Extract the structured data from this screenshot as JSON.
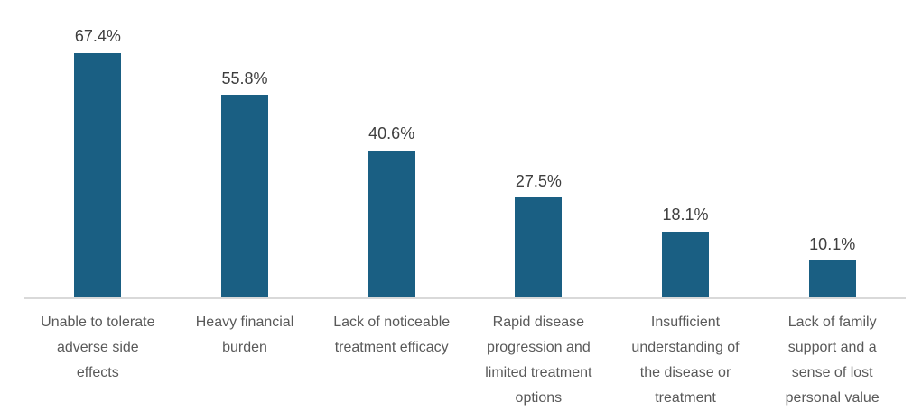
{
  "chart": {
    "bar_color": "#1A5F83",
    "axis_line_color": "#D9D9D9",
    "value_label_color": "#3F3F3F",
    "category_label_color": "#595959",
    "background_color": "#FFFFFF"
  },
  "chart_data": {
    "type": "bar",
    "title": "",
    "xlabel": "",
    "ylabel": "",
    "categories": [
      "Unable to tolerate adverse side effects",
      "Heavy financial burden",
      "Lack of noticeable treatment efficacy",
      "Rapid disease progression and limited treatment options",
      "Insufficient understanding of the disease or treatment",
      "Lack of family support and a sense of lost personal value"
    ],
    "display_categories": [
      "Unable to tolerate\nadverse side\neffects",
      "Heavy financial\nburden",
      "Lack of noticeable\ntreatment efficacy",
      "Rapid disease\nprogression and\nlimited treatment\noptions",
      "Insufficient\nunderstanding of\nthe disease or\ntreatment",
      "Lack of family\nsupport and a\nsense of lost\npersonal value"
    ],
    "values": [
      67.4,
      55.8,
      40.6,
      27.5,
      18.1,
      10.1
    ],
    "value_labels": [
      "67.4%",
      "55.8%",
      "40.6%",
      "27.5%",
      "18.1%",
      "10.1%"
    ],
    "ylim": [
      0,
      80
    ],
    "grid": false,
    "legend": false,
    "y_axis_visible": false,
    "data_labels_position": "above-bar"
  }
}
